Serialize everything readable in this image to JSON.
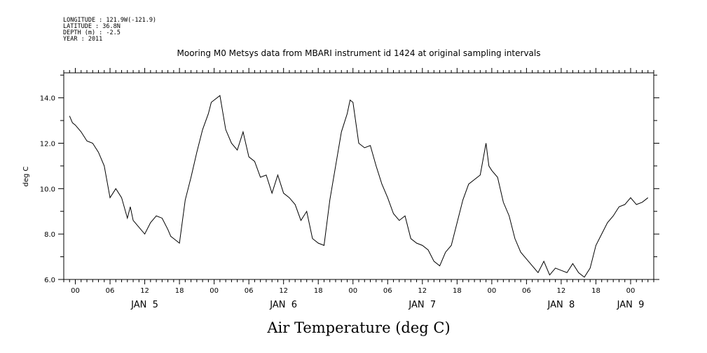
{
  "header": {
    "meta_lines": [
      "LONGITUDE : 121.9W(-121.9)",
      "LATITUDE : 36.8N",
      "DEPTH (m) : -2.5",
      "YEAR : 2011"
    ]
  },
  "chart_data": {
    "type": "line",
    "title": "Mooring M0 Metsys data from MBARI instrument id 1424 at original sampling intervals",
    "xlabel": "Air Temperature (deg C)",
    "ylabel": "deg C",
    "ylim": [
      6.0,
      15.1
    ],
    "yticks": [
      "6.0",
      "8.0",
      "10.0",
      "12.0",
      "14.0"
    ],
    "xlim": [
      "2011-01-04T22:00",
      "2011-01-09T04:00"
    ],
    "hour_tick_labels": [
      {
        "t": "2011-01-05T00:00",
        "label": "00"
      },
      {
        "t": "2011-01-05T06:00",
        "label": "06"
      },
      {
        "t": "2011-01-05T12:00",
        "label": "12"
      },
      {
        "t": "2011-01-05T18:00",
        "label": "18"
      },
      {
        "t": "2011-01-06T00:00",
        "label": "00"
      },
      {
        "t": "2011-01-06T06:00",
        "label": "06"
      },
      {
        "t": "2011-01-06T12:00",
        "label": "12"
      },
      {
        "t": "2011-01-06T18:00",
        "label": "18"
      },
      {
        "t": "2011-01-07T00:00",
        "label": "00"
      },
      {
        "t": "2011-01-07T06:00",
        "label": "06"
      },
      {
        "t": "2011-01-07T12:00",
        "label": "12"
      },
      {
        "t": "2011-01-07T18:00",
        "label": "18"
      },
      {
        "t": "2011-01-08T00:00",
        "label": "00"
      },
      {
        "t": "2011-01-08T06:00",
        "label": "06"
      },
      {
        "t": "2011-01-08T12:00",
        "label": "12"
      },
      {
        "t": "2011-01-08T18:00",
        "label": "18"
      },
      {
        "t": "2011-01-09T00:00",
        "label": "00"
      }
    ],
    "day_labels": [
      {
        "t": "2011-01-05T12:00",
        "label": "JAN  5"
      },
      {
        "t": "2011-01-06T12:00",
        "label": "JAN  6"
      },
      {
        "t": "2011-01-07T12:00",
        "label": "JAN  7"
      },
      {
        "t": "2011-01-08T12:00",
        "label": "JAN  8"
      },
      {
        "t": "2011-01-09T00:00",
        "label": "JAN  9"
      }
    ],
    "grid": false,
    "series": [
      {
        "x": [
          "2011-01-04T23:00",
          "2011-01-04T23:30",
          "2011-01-05T00:00",
          "2011-01-05T01:00",
          "2011-01-05T02:00",
          "2011-01-05T03:00",
          "2011-01-05T04:00",
          "2011-01-05T05:00",
          "2011-01-05T06:00",
          "2011-01-05T06:30",
          "2011-01-05T07:00",
          "2011-01-05T08:00",
          "2011-01-05T09:00",
          "2011-01-05T09:30",
          "2011-01-05T10:00",
          "2011-01-05T11:00",
          "2011-01-05T12:00",
          "2011-01-05T13:00",
          "2011-01-05T14:00",
          "2011-01-05T15:00",
          "2011-01-05T16:00",
          "2011-01-05T16:30",
          "2011-01-05T17:00",
          "2011-01-05T18:00",
          "2011-01-05T19:00",
          "2011-01-05T20:00",
          "2011-01-05T21:00",
          "2011-01-05T22:00",
          "2011-01-05T23:00",
          "2011-01-05T23:30",
          "2011-01-06T00:00",
          "2011-01-06T01:00",
          "2011-01-06T02:00",
          "2011-01-06T03:00",
          "2011-01-06T04:00",
          "2011-01-06T05:00",
          "2011-01-06T06:00",
          "2011-01-06T07:00",
          "2011-01-06T08:00",
          "2011-01-06T09:00",
          "2011-01-06T10:00",
          "2011-01-06T11:00",
          "2011-01-06T12:00",
          "2011-01-06T13:00",
          "2011-01-06T14:00",
          "2011-01-06T15:00",
          "2011-01-06T16:00",
          "2011-01-06T17:00",
          "2011-01-06T18:00",
          "2011-01-06T19:00",
          "2011-01-06T20:00",
          "2011-01-06T21:00",
          "2011-01-06T22:00",
          "2011-01-06T23:00",
          "2011-01-06T23:30",
          "2011-01-07T00:00",
          "2011-01-07T01:00",
          "2011-01-07T02:00",
          "2011-01-07T03:00",
          "2011-01-07T04:00",
          "2011-01-07T05:00",
          "2011-01-07T06:00",
          "2011-01-07T07:00",
          "2011-01-07T08:00",
          "2011-01-07T09:00",
          "2011-01-07T10:00",
          "2011-01-07T11:00",
          "2011-01-07T12:00",
          "2011-01-07T13:00",
          "2011-01-07T14:00",
          "2011-01-07T15:00",
          "2011-01-07T16:00",
          "2011-01-07T17:00",
          "2011-01-07T18:00",
          "2011-01-07T19:00",
          "2011-01-07T20:00",
          "2011-01-07T21:00",
          "2011-01-07T22:00",
          "2011-01-07T23:00",
          "2011-01-07T23:30",
          "2011-01-08T00:00",
          "2011-01-08T01:00",
          "2011-01-08T02:00",
          "2011-01-08T03:00",
          "2011-01-08T04:00",
          "2011-01-08T05:00",
          "2011-01-08T06:00",
          "2011-01-08T07:00",
          "2011-01-08T08:00",
          "2011-01-08T09:00",
          "2011-01-08T10:00",
          "2011-01-08T11:00",
          "2011-01-08T12:00",
          "2011-01-08T13:00",
          "2011-01-08T14:00",
          "2011-01-08T15:00",
          "2011-01-08T16:00",
          "2011-01-08T17:00",
          "2011-01-08T18:00",
          "2011-01-08T19:00",
          "2011-01-08T20:00",
          "2011-01-08T21:00",
          "2011-01-08T22:00",
          "2011-01-08T23:00",
          "2011-01-09T00:00",
          "2011-01-09T01:00",
          "2011-01-09T02:00",
          "2011-01-09T03:00"
        ],
        "y": [
          13.2,
          12.9,
          12.8,
          12.5,
          12.1,
          12.0,
          11.6,
          11.0,
          9.6,
          9.8,
          10.0,
          9.6,
          8.7,
          9.2,
          8.6,
          8.3,
          8.0,
          8.5,
          8.8,
          8.7,
          8.2,
          7.9,
          7.8,
          7.6,
          9.5,
          10.5,
          11.6,
          12.6,
          13.3,
          13.8,
          13.9,
          14.1,
          12.6,
          12.0,
          11.7,
          12.5,
          11.4,
          11.2,
          10.5,
          10.6,
          9.8,
          10.6,
          9.8,
          9.6,
          9.3,
          8.6,
          9.0,
          7.8,
          7.6,
          7.5,
          9.5,
          11.0,
          12.5,
          13.3,
          13.9,
          13.8,
          12.0,
          11.8,
          11.9,
          11.0,
          10.2,
          9.6,
          8.9,
          8.6,
          8.8,
          7.8,
          7.6,
          7.5,
          7.3,
          6.8,
          6.6,
          7.2,
          7.5,
          8.5,
          9.5,
          10.2,
          10.4,
          10.6,
          12.0,
          11.0,
          10.8,
          10.5,
          9.4,
          8.8,
          7.8,
          7.2,
          6.9,
          6.6,
          6.3,
          6.8,
          6.2,
          6.5,
          6.4,
          6.3,
          6.7,
          6.3,
          6.1,
          6.5,
          7.5,
          8.0,
          8.5,
          8.8,
          9.2,
          9.3,
          9.6,
          9.3,
          9.4,
          9.6
        ]
      }
    ]
  }
}
